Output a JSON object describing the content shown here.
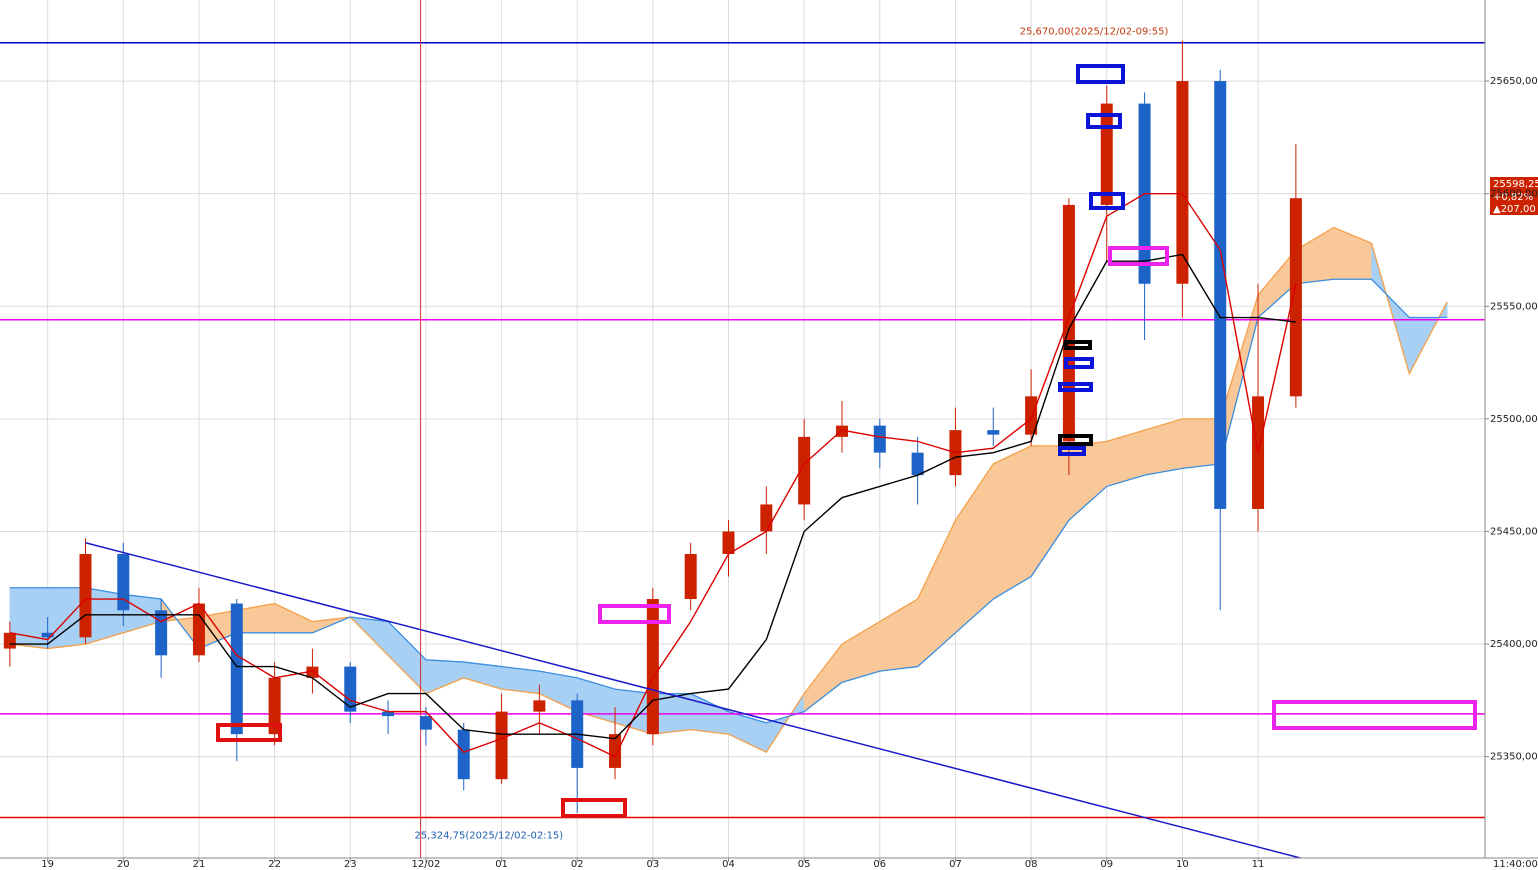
{
  "chart_data": {
    "type": "candlestick",
    "xlim": [
      -0.63,
      19.0
    ],
    "ylim": [
      25305,
      25686
    ],
    "xticks": [
      {
        "value": 0,
        "label": "19"
      },
      {
        "value": 1,
        "label": "20"
      },
      {
        "value": 2,
        "label": "21"
      },
      {
        "value": 3,
        "label": "22"
      },
      {
        "value": 4,
        "label": "23"
      },
      {
        "value": 5,
        "label": "12/02"
      },
      {
        "value": 6,
        "label": "01"
      },
      {
        "value": 7,
        "label": "02"
      },
      {
        "value": 8,
        "label": "03"
      },
      {
        "value": 9,
        "label": "04"
      },
      {
        "value": 10,
        "label": "05"
      },
      {
        "value": 11,
        "label": "06"
      },
      {
        "value": 12,
        "label": "07"
      },
      {
        "value": 13,
        "label": "08"
      },
      {
        "value": 14,
        "label": "09"
      },
      {
        "value": 15,
        "label": "10"
      },
      {
        "value": 16,
        "label": "11"
      }
    ],
    "x_end_label": "11:40:00",
    "yticks": [
      {
        "value": 25350,
        "label": "25350,00"
      },
      {
        "value": 25400,
        "label": "25400,00"
      },
      {
        "value": 25450,
        "label": "25450,00"
      },
      {
        "value": 25500,
        "label": "25500,00"
      },
      {
        "value": 25550,
        "label": "25550,00"
      },
      {
        "value": 25600,
        "label": "25600,00"
      },
      {
        "value": 25650,
        "label": "25650,00"
      }
    ],
    "grid": true,
    "up_color": "#cc2200",
    "down_color": "#1e64c8",
    "candles": {
      "x": [
        -0.5,
        0,
        0.5,
        1,
        1.5,
        2,
        2.5,
        3,
        3.5,
        4,
        4.5,
        5,
        5.5,
        6,
        6.5,
        7,
        7.5,
        8,
        8.5,
        9,
        9.5,
        10,
        10.5,
        11,
        11.5,
        12,
        12.5,
        13,
        13.5,
        14,
        14.5,
        15,
        15.5,
        16,
        16.5
      ],
      "open": [
        25398,
        25405,
        25403,
        25440,
        25415,
        25395,
        25418,
        25360,
        25385,
        25390,
        25370,
        25368,
        25362,
        25340,
        25370,
        25375,
        25345,
        25360,
        25420,
        25440,
        25450,
        25462,
        25492,
        25497,
        25485,
        25475,
        25495,
        25493,
        25490,
        25595,
        25640,
        25560,
        25650,
        25460,
        25510
      ],
      "high": [
        25410,
        25412,
        25447,
        25445,
        25420,
        25425,
        25420,
        25392,
        25398,
        25392,
        25375,
        25372,
        25365,
        25378,
        25382,
        25378,
        25372,
        25425,
        25445,
        25455,
        25470,
        25500,
        25508,
        25500,
        25492,
        25505,
        25505,
        25522,
        25598,
        25648,
        25645,
        25668,
        25655,
        25560,
        25622
      ],
      "low": [
        25390,
        25398,
        25400,
        25408,
        25385,
        25392,
        25348,
        25355,
        25378,
        25365,
        25360,
        25355,
        25335,
        25338,
        25360,
        25325,
        25340,
        25355,
        25415,
        25430,
        25440,
        25455,
        25485,
        25478,
        25462,
        25470,
        25488,
        25488,
        25475,
        25570,
        25535,
        25545,
        25415,
        25450,
        25505
      ],
      "close": [
        25405,
        25403,
        25440,
        25415,
        25395,
        25418,
        25360,
        25385,
        25390,
        25370,
        25368,
        25362,
        25340,
        25370,
        25375,
        25345,
        25360,
        25420,
        25440,
        25450,
        25462,
        25492,
        25497,
        25485,
        25475,
        25495,
        25493,
        25510,
        25595,
        25640,
        25560,
        25650,
        25460,
        25510,
        25598
      ]
    },
    "lines": [
      {
        "color": "#dd0000",
        "values": [
          25405,
          25402,
          25420,
          25420,
          25410,
          25418,
          25395,
          25385,
          25388,
          25375,
          25370,
          25370,
          25352,
          25358,
          25365,
          25358,
          25350,
          25385,
          25410,
          25440,
          25450,
          25480,
          25495,
          25492,
          25490,
          25485,
          25487,
          25500,
          25545,
          25590,
          25600,
          25600,
          25575,
          25485,
          25560
        ]
      },
      {
        "color": "#000000",
        "values": [
          25400,
          25400,
          25413,
          25413,
          25413,
          25413,
          25390,
          25390,
          25385,
          25372,
          25378,
          25378,
          25362,
          25360,
          25360,
          25360,
          25358,
          25375,
          25378,
          25380,
          25402,
          25450,
          25465,
          25470,
          25475,
          25483,
          25485,
          25490,
          25540,
          25570,
          25570,
          25573,
          25545,
          25545,
          25543
        ]
      }
    ],
    "cloud": {
      "x": [
        -0.5,
        0,
        0.5,
        1,
        1.5,
        2,
        2.5,
        3,
        3.5,
        4,
        4.5,
        5,
        5.5,
        6,
        6.5,
        7,
        7.5,
        8,
        8.5,
        9,
        9.5,
        10,
        10.5,
        11,
        11.5,
        12,
        12.5,
        13,
        13.5,
        14,
        14.5,
        15,
        15.5,
        16,
        16.5,
        17,
        17.5,
        18,
        18.5
      ],
      "span_a": [
        25400,
        25398,
        25400,
        25405,
        25410,
        25412,
        25415,
        25418,
        25410,
        25412,
        25395,
        25378,
        25385,
        25380,
        25378,
        25370,
        25365,
        25360,
        25362,
        25360,
        25352,
        25378,
        25400,
        25410,
        25420,
        25455,
        25480,
        25488,
        25488,
        25490,
        25495,
        25500,
        25500,
        25555,
        25575,
        25585,
        25578,
        25520,
        25552
      ],
      "span_b": [
        25425,
        25425,
        25425,
        25422,
        25420,
        25398,
        25405,
        25405,
        25405,
        25412,
        25410,
        25393,
        25392,
        25390,
        25388,
        25385,
        25380,
        25378,
        25378,
        25370,
        25365,
        25370,
        25383,
        25388,
        25390,
        25405,
        25420,
        25430,
        25455,
        25470,
        25475,
        25478,
        25480,
        25545,
        25560,
        25562,
        25562,
        25545,
        25545
      ],
      "a_color": "#f5a04a",
      "b_color": "#3a8ee0",
      "a_fill": "#f9c898",
      "b_fill": "#a8d0f4"
    },
    "hlines": [
      {
        "value": 25667,
        "color": "#0000cc"
      },
      {
        "value": 25544,
        "color": "#ee00ee"
      },
      {
        "value": 25369,
        "color": "#ee00ee"
      },
      {
        "value": 25323,
        "color": "#ee0000"
      }
    ],
    "vline": {
      "x": 4.93,
      "color": "#cc3333"
    },
    "trendline": {
      "x": [
        0.5,
        16.56
      ],
      "values": [
        25445,
        25305
      ],
      "color": "#1a1acc"
    },
    "annotations": [
      {
        "text": "25,670,00(2025/12/02-09:55)",
        "x": 15.0,
        "y": 25672,
        "color": "#c03a10"
      },
      {
        "text": "25,324,75(2025/12/02-02:15)",
        "x": 7.0,
        "y": 25315,
        "color": "#2060b0"
      }
    ],
    "last_price_label": [
      "25598,25",
      "+0,82%",
      "▲207,00"
    ]
  }
}
